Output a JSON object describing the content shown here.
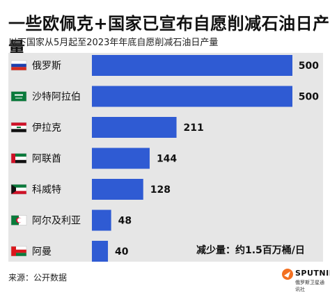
{
  "header": {
    "title": "一些欧佩克+国家已宣布自愿削减石油日产量",
    "subtitle": "以下国家从5月起至2023年年底自愿削减石油日产量"
  },
  "footer": {
    "source": "来源：公开数据",
    "logo_word": "SPUTNIK",
    "logo_sub": "俄罗斯卫星通讯社"
  },
  "total_note": "减少量：约1.5百万桶/日",
  "colors": {
    "bar": "#2f5bd3",
    "panel": "#e6e6e6"
  },
  "flags": [
    "russia-flag-icon",
    "saudi-arabia-flag-icon",
    "iraq-flag-icon",
    "uae-flag-icon",
    "kuwait-flag-icon",
    "algeria-flag-icon",
    "oman-flag-icon"
  ],
  "chart_data": {
    "type": "bar",
    "orientation": "horizontal",
    "title": "一些欧佩克+国家已宣布自愿削减石油日产量",
    "subtitle": "以下国家从5月起至2023年年底自愿削减石油日产量",
    "categories": [
      "俄罗斯",
      "沙特阿拉伯",
      "伊拉克",
      "阿联酋",
      "科威特",
      "阿尔及利亚",
      "阿曼"
    ],
    "values": [
      500,
      500,
      211,
      144,
      128,
      48,
      40
    ],
    "xlim": [
      0,
      500
    ],
    "grid": false,
    "legend": "none",
    "annotation": "减少量：约1.5百万桶/日"
  }
}
